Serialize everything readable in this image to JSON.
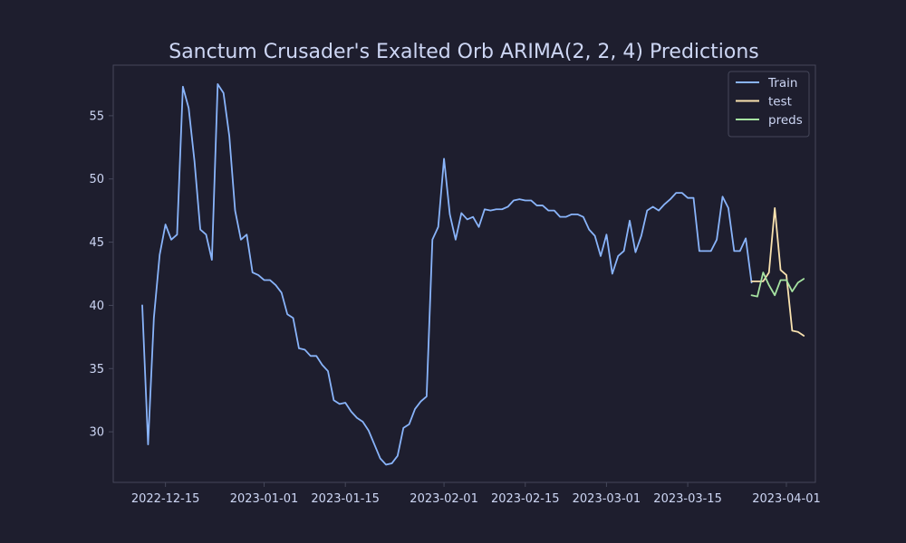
{
  "chart_data": {
    "type": "line",
    "title": "Sanctum Crusader's Exalted Orb ARIMA(2, 2, 4) Predictions",
    "xlabel": "",
    "ylabel": "",
    "x_ticks": [
      "2022-12-15",
      "2023-01-01",
      "2023-01-15",
      "2023-02-01",
      "2023-02-15",
      "2023-03-01",
      "2023-03-15",
      "2023-04-01"
    ],
    "y_ticks": [
      30,
      35,
      40,
      45,
      50,
      55
    ],
    "xlim": [
      "2022-12-06",
      "2023-04-06"
    ],
    "ylim": [
      26,
      59
    ],
    "grid": false,
    "legend_position": "top-right",
    "colors": {
      "background": "#1e1e2e",
      "axis": "#45475a",
      "text": "#cdd6f4",
      "train": "#89b4fa",
      "test": "#f9e2af",
      "preds": "#a6e3a1"
    },
    "series": [
      {
        "name": "Train",
        "color": "#89b4fa",
        "start": "2022-12-11",
        "values": [
          40.0,
          29.0,
          39.0,
          44.0,
          46.4,
          45.2,
          45.6,
          57.3,
          55.6,
          51.4,
          46.0,
          45.6,
          43.6,
          57.5,
          56.8,
          53.4,
          47.5,
          45.2,
          45.6,
          42.6,
          42.4,
          42.0,
          42.0,
          41.6,
          41.0,
          39.3,
          39.0,
          36.6,
          36.5,
          36.0,
          36.0,
          35.3,
          34.8,
          32.5,
          32.2,
          32.3,
          31.6,
          31.1,
          30.8,
          30.1,
          29.0,
          27.9,
          27.4,
          27.5,
          28.1,
          30.3,
          30.6,
          31.8,
          32.4,
          32.8,
          45.2,
          46.2,
          51.6,
          47.2,
          45.2,
          47.3,
          46.8,
          47.0,
          46.2,
          47.6,
          47.5,
          47.6,
          47.6,
          47.8,
          48.3,
          48.4,
          48.3,
          48.3,
          47.9,
          47.9,
          47.5,
          47.5,
          47.0,
          47.0,
          47.2,
          47.2,
          47.0,
          46.0,
          45.5,
          43.9,
          45.6,
          42.5,
          43.9,
          44.3,
          46.7,
          44.2,
          45.5,
          47.5,
          47.8,
          47.5,
          48.0,
          48.4,
          48.9,
          48.9,
          48.5,
          48.5,
          44.3,
          44.3,
          44.3,
          45.2,
          48.6,
          47.7,
          44.3,
          44.3,
          45.3,
          41.8
        ]
      },
      {
        "name": "test",
        "color": "#f9e2af",
        "start": "2023-03-26",
        "values": [
          41.9,
          41.9,
          41.9,
          42.6,
          47.7,
          42.8,
          42.4,
          38.0,
          37.9,
          37.6
        ]
      },
      {
        "name": "preds",
        "color": "#a6e3a1",
        "start": "2023-03-26",
        "values": [
          40.8,
          40.7,
          42.6,
          41.6,
          40.8,
          42.0,
          42.0,
          41.1,
          41.8,
          42.1
        ]
      }
    ]
  }
}
